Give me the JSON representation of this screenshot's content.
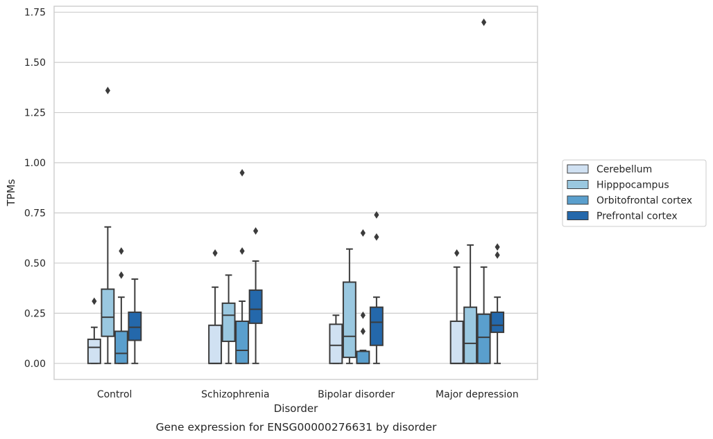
{
  "chart_data": {
    "type": "box",
    "caption": "Gene expression for ENSG00000276631 by disorder",
    "xlabel": "Disorder",
    "ylabel": "TPMs",
    "ylim": [
      -0.08,
      1.78
    ],
    "yticks": [
      0.0,
      0.25,
      0.5,
      0.75,
      1.0,
      1.25,
      1.5,
      1.75
    ],
    "ytick_labels": [
      "0.00",
      "0.25",
      "0.50",
      "0.75",
      "1.00",
      "1.25",
      "1.50",
      "1.75"
    ],
    "grid": "horizontal",
    "legend_position": "right",
    "categories": [
      "Control",
      "Schizophrenia",
      "Bipolar disorder",
      "Major depression"
    ],
    "series": [
      {
        "name": "Cerebellum",
        "color": "#d0e1f2",
        "boxes": [
          {
            "whisker_low": 0.0,
            "q1": 0.0,
            "median": 0.08,
            "q3": 0.12,
            "whisker_high": 0.18,
            "outliers": [
              0.31
            ]
          },
          {
            "whisker_low": 0.0,
            "q1": 0.0,
            "median": 0.0,
            "q3": 0.19,
            "whisker_high": 0.38,
            "outliers": [
              0.55
            ]
          },
          {
            "whisker_low": 0.0,
            "q1": 0.0,
            "median": 0.09,
            "q3": 0.195,
            "whisker_high": 0.24,
            "outliers": []
          },
          {
            "whisker_low": 0.0,
            "q1": 0.0,
            "median": 0.0,
            "q3": 0.21,
            "whisker_high": 0.48,
            "outliers": [
              0.55
            ]
          }
        ]
      },
      {
        "name": "Hipppocampus",
        "color": "#9ac8e0",
        "boxes": [
          {
            "whisker_low": 0.0,
            "q1": 0.135,
            "median": 0.23,
            "q3": 0.37,
            "whisker_high": 0.68,
            "outliers": [
              1.36
            ]
          },
          {
            "whisker_low": 0.0,
            "q1": 0.11,
            "median": 0.24,
            "q3": 0.3,
            "whisker_high": 0.44,
            "outliers": []
          },
          {
            "whisker_low": 0.0,
            "q1": 0.03,
            "median": 0.135,
            "q3": 0.405,
            "whisker_high": 0.57,
            "outliers": []
          },
          {
            "whisker_low": 0.0,
            "q1": 0.0,
            "median": 0.1,
            "q3": 0.28,
            "whisker_high": 0.59,
            "outliers": []
          }
        ]
      },
      {
        "name": "Orbitofrontal cortex",
        "color": "#5a9fcd",
        "boxes": [
          {
            "whisker_low": 0.0,
            "q1": 0.0,
            "median": 0.05,
            "q3": 0.16,
            "whisker_high": 0.33,
            "outliers": [
              0.44,
              0.56
            ]
          },
          {
            "whisker_low": 0.0,
            "q1": 0.0,
            "median": 0.065,
            "q3": 0.21,
            "whisker_high": 0.31,
            "outliers": [
              0.56,
              0.95
            ]
          },
          {
            "whisker_low": 0.0,
            "q1": 0.0,
            "median": 0.0,
            "q3": 0.06,
            "whisker_high": 0.065,
            "outliers": [
              0.16,
              0.24,
              0.65
            ]
          },
          {
            "whisker_low": 0.0,
            "q1": 0.0,
            "median": 0.13,
            "q3": 0.245,
            "whisker_high": 0.48,
            "outliers": [
              1.7
            ]
          }
        ]
      },
      {
        "name": "Prefrontal cortex",
        "color": "#2468ab",
        "boxes": [
          {
            "whisker_low": 0.0,
            "q1": 0.115,
            "median": 0.18,
            "q3": 0.255,
            "whisker_high": 0.42,
            "outliers": []
          },
          {
            "whisker_low": 0.0,
            "q1": 0.2,
            "median": 0.27,
            "q3": 0.365,
            "whisker_high": 0.51,
            "outliers": [
              0.66
            ]
          },
          {
            "whisker_low": 0.0,
            "q1": 0.09,
            "median": 0.205,
            "q3": 0.28,
            "whisker_high": 0.33,
            "outliers": [
              0.63,
              0.74
            ]
          },
          {
            "whisker_low": 0.0,
            "q1": 0.155,
            "median": 0.19,
            "q3": 0.255,
            "whisker_high": 0.33,
            "outliers": [
              0.54,
              0.58
            ]
          }
        ]
      }
    ]
  }
}
